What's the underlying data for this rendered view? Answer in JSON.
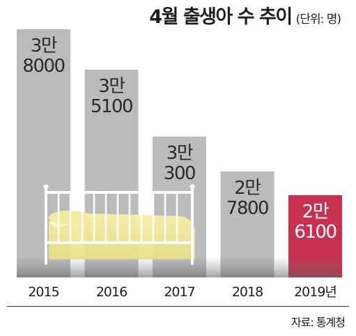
{
  "title": "4월 출생아 수 추이",
  "unit": "(단위: 명)",
  "source": "자료: 통계청",
  "chart_data": {
    "type": "bar",
    "categories": [
      "2015",
      "2016",
      "2017",
      "2018",
      "2019년"
    ],
    "values": [
      38000,
      35100,
      30300,
      27800,
      26100
    ],
    "data_labels": [
      [
        "3만",
        "8000"
      ],
      [
        "3만",
        "5100"
      ],
      [
        "3만",
        "300"
      ],
      [
        "2만",
        "7800"
      ],
      [
        "2만",
        "6100"
      ]
    ],
    "colors": {
      "default": "#bbbbbd",
      "highlight": "#c8304f"
    },
    "highlight_index": 4,
    "grid": false
  }
}
